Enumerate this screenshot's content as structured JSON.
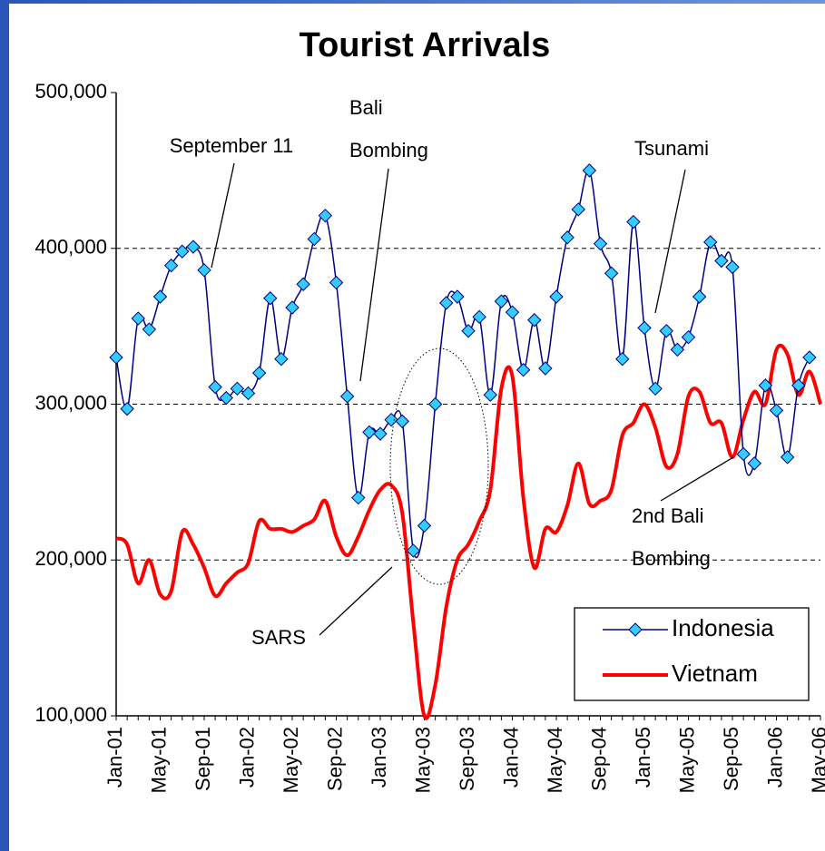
{
  "chart_data": {
    "type": "line",
    "title": "Tourist Arrivals",
    "categories": [
      "Jan-01",
      null,
      null,
      null,
      "May-01",
      null,
      null,
      null,
      "Sep-01",
      null,
      null,
      null,
      "Jan-02",
      null,
      null,
      null,
      "May-02",
      null,
      null,
      null,
      "Sep-02",
      null,
      null,
      null,
      "Jan-03",
      null,
      null,
      null,
      "May-03",
      null,
      null,
      null,
      "Sep-03",
      null,
      null,
      null,
      "Jan-04",
      null,
      null,
      null,
      "May-04",
      null,
      null,
      null,
      "Sep-04",
      null,
      null,
      null,
      "Jan-05",
      null,
      null,
      null,
      "May-05",
      null,
      null,
      null,
      "Sep-05",
      null,
      null,
      null,
      "Jan-06",
      null,
      null,
      null,
      "May-06"
    ],
    "series": [
      {
        "name": "Indonesia",
        "color": "#000080",
        "marker_color": "#33ccff",
        "marker": "diamond",
        "values": [
          330000,
          297000,
          355000,
          348000,
          369000,
          389000,
          398000,
          401000,
          386000,
          311000,
          304000,
          310000,
          307000,
          320000,
          368000,
          329000,
          362000,
          377000,
          406000,
          421000,
          378000,
          305000,
          240000,
          282000,
          281000,
          290000,
          289000,
          206000,
          222000,
          300000,
          365000,
          369000,
          347000,
          356000,
          306000,
          366000,
          359000,
          322000,
          354000,
          323000,
          369000,
          407000,
          425000,
          450000,
          403000,
          384000,
          329000,
          417000,
          349000,
          310000,
          347000,
          335000,
          343000,
          369000,
          404000,
          392000,
          388000,
          268000,
          262000,
          312000,
          296000,
          266000,
          312000,
          330000,
          null
        ]
      },
      {
        "name": "Vietnam",
        "color": "#ff0000",
        "values": [
          214000,
          210000,
          185000,
          200000,
          178000,
          180000,
          218000,
          210000,
          195000,
          177000,
          185000,
          192000,
          198000,
          225000,
          220000,
          220000,
          218000,
          222000,
          226000,
          238000,
          215000,
          203000,
          215000,
          232000,
          245000,
          248000,
          230000,
          160000,
          100000,
          120000,
          170000,
          200000,
          210000,
          225000,
          245000,
          310000,
          318000,
          240000,
          195000,
          220000,
          218000,
          235000,
          262000,
          236000,
          238000,
          245000,
          280000,
          288000,
          300000,
          285000,
          260000,
          268000,
          305000,
          308000,
          288000,
          288000,
          266000,
          290000,
          308000,
          300000,
          335000,
          332000,
          306000,
          321000,
          300000
        ]
      }
    ],
    "ylim": [
      100000,
      500000
    ],
    "yticks": [
      {
        "value": 100000,
        "label": "100,000"
      },
      {
        "value": 200000,
        "label": "200,000"
      },
      {
        "value": 300000,
        "label": "300,000"
      },
      {
        "value": 400000,
        "label": "400,000"
      },
      {
        "value": 500000,
        "label": "500,000"
      }
    ],
    "grid": true,
    "legend": "lower right",
    "annotations": [
      {
        "lines": [
          "September 11"
        ]
      },
      {
        "lines": [
          "Bali",
          "Bombing"
        ]
      },
      {
        "lines": [
          "Tsunami"
        ]
      },
      {
        "lines": [
          "2nd Bali",
          "Bombing"
        ]
      },
      {
        "lines": [
          "SARS"
        ]
      }
    ]
  }
}
